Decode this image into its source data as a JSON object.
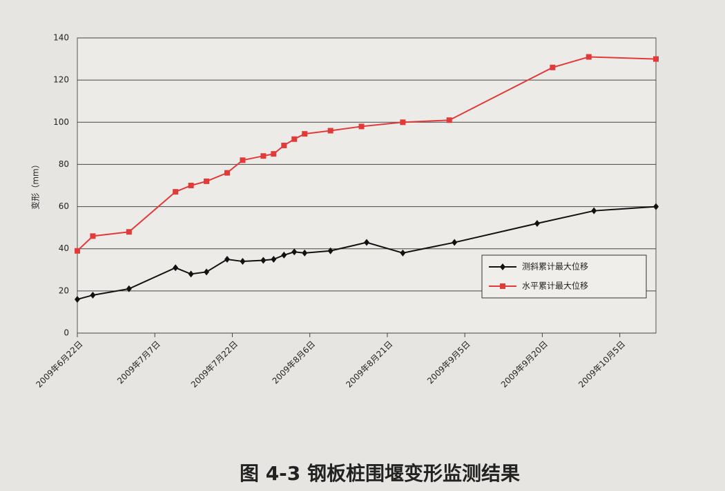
{
  "chart_data": {
    "type": "line",
    "caption": "图 4-3  钢板桩围堰变形监测结果",
    "y_label": "变形（mm）",
    "xlim": [
      "2009-06-22",
      "2009-10-12"
    ],
    "xticks": [
      {
        "value": "2009-06-22",
        "label": "2009年6月22日"
      },
      {
        "value": "2009-07-07",
        "label": "2009年7月7日"
      },
      {
        "value": "2009-07-22",
        "label": "2009年7月22日"
      },
      {
        "value": "2009-08-06",
        "label": "2009年8月6日"
      },
      {
        "value": "2009-08-21",
        "label": "2009年8月21日"
      },
      {
        "value": "2009-09-05",
        "label": "2009年9月5日"
      },
      {
        "value": "2009-09-20",
        "label": "2009年9月20日"
      },
      {
        "value": "2009-10-05",
        "label": "2009年10月5日"
      }
    ],
    "ylim": [
      0,
      140
    ],
    "yticks": [
      0,
      20,
      40,
      60,
      80,
      100,
      120,
      140
    ],
    "grid": true,
    "legend_position": "right",
    "series": [
      {
        "name": "测斜累计最大位移",
        "color": "#111111",
        "marker": "diamond",
        "x": [
          "2009-06-22",
          "2009-06-25",
          "2009-07-02",
          "2009-07-11",
          "2009-07-14",
          "2009-07-17",
          "2009-07-21",
          "2009-07-24",
          "2009-07-28",
          "2009-07-30",
          "2009-08-01",
          "2009-08-03",
          "2009-08-05",
          "2009-08-10",
          "2009-08-17",
          "2009-08-24",
          "2009-09-03",
          "2009-09-19",
          "2009-09-30",
          "2009-10-12"
        ],
        "values": [
          16,
          18,
          21,
          31,
          28,
          29,
          35,
          34,
          34.5,
          35,
          37,
          38.5,
          38,
          39,
          43,
          38,
          43,
          52,
          58,
          60
        ]
      },
      {
        "name": "水平累计最大位移",
        "color": "#e03a3a",
        "marker": "square",
        "x": [
          "2009-06-22",
          "2009-06-25",
          "2009-07-02",
          "2009-07-11",
          "2009-07-14",
          "2009-07-17",
          "2009-07-21",
          "2009-07-24",
          "2009-07-28",
          "2009-07-30",
          "2009-08-01",
          "2009-08-03",
          "2009-08-05",
          "2009-08-10",
          "2009-08-16",
          "2009-08-24",
          "2009-09-02",
          "2009-09-22",
          "2009-09-29",
          "2009-10-12"
        ],
        "values": [
          39,
          46,
          48,
          67,
          70,
          72,
          76,
          82,
          84,
          85,
          89,
          92,
          94.5,
          96,
          98,
          100,
          101,
          126,
          131,
          130
        ]
      }
    ]
  }
}
